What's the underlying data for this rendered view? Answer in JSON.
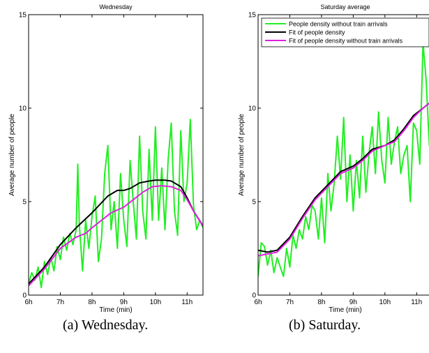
{
  "captions": [
    "(a) Wednesday.",
    "(b) Saturday."
  ],
  "colors": {
    "green": "#22ee22",
    "black": "#000000",
    "magenta": "#e020e0"
  },
  "chart_data": [
    {
      "type": "line",
      "title": "Wednesday",
      "xlabel": "Time (min)",
      "ylabel": "Average number of people",
      "xlim": [
        6,
        11.5
      ],
      "ylim": [
        0,
        15
      ],
      "xticks": [
        6,
        7,
        8,
        9,
        10,
        11
      ],
      "xtick_labels": [
        "6h",
        "7h",
        "8h",
        "9h",
        "10h",
        "11h"
      ],
      "yticks": [
        0,
        5,
        10,
        15
      ],
      "ytick_labels": [
        "0",
        "5",
        "10",
        "15"
      ],
      "legend": null,
      "series": [
        {
          "color": "green",
          "x": [
            6.0,
            6.1,
            6.2,
            6.3,
            6.4,
            6.5,
            6.6,
            6.7,
            6.8,
            6.9,
            7.0,
            7.1,
            7.2,
            7.3,
            7.4,
            7.5,
            7.55,
            7.6,
            7.7,
            7.8,
            7.9,
            8.0,
            8.1,
            8.2,
            8.3,
            8.4,
            8.5,
            8.6,
            8.7,
            8.8,
            8.9,
            9.0,
            9.1,
            9.2,
            9.3,
            9.4,
            9.5,
            9.6,
            9.7,
            9.8,
            9.9,
            10.0,
            10.1,
            10.2,
            10.3,
            10.4,
            10.5,
            10.6,
            10.7,
            10.8,
            10.9,
            11.0,
            11.1,
            11.2,
            11.3,
            11.4,
            11.5
          ],
          "y": [
            0.6,
            1.2,
            0.8,
            1.5,
            0.4,
            1.8,
            1.1,
            2.0,
            1.3,
            2.6,
            1.9,
            3.1,
            2.4,
            3.3,
            2.7,
            3.5,
            7.0,
            3.8,
            1.3,
            4.0,
            2.5,
            4.2,
            5.3,
            1.8,
            3.0,
            6.5,
            8.0,
            3.5,
            5.0,
            2.5,
            6.5,
            4.0,
            2.6,
            7.2,
            5.0,
            3.0,
            8.5,
            4.5,
            3.0,
            7.8,
            4.0,
            9.0,
            4.0,
            6.8,
            3.5,
            7.2,
            9.2,
            4.5,
            3.2,
            8.8,
            5.0,
            6.0,
            9.4,
            4.8,
            3.5,
            4.0,
            3.6
          ]
        },
        {
          "color": "black",
          "x": [
            6.0,
            6.5,
            7.0,
            7.5,
            8.0,
            8.5,
            8.8,
            9.0,
            9.2,
            9.5,
            9.8,
            10.0,
            10.3,
            10.5,
            10.8,
            11.0,
            11.2,
            11.5
          ],
          "y": [
            0.6,
            1.5,
            2.7,
            3.6,
            4.4,
            5.3,
            5.6,
            5.6,
            5.7,
            6.0,
            6.1,
            6.15,
            6.15,
            6.1,
            5.8,
            5.2,
            4.5,
            3.7
          ]
        },
        {
          "color": "magenta",
          "x": [
            6.0,
            6.5,
            7.0,
            7.5,
            7.8,
            8.0,
            8.3,
            8.6,
            9.0,
            9.3,
            9.6,
            9.9,
            10.2,
            10.5,
            10.8,
            11.0,
            11.2,
            11.5
          ],
          "y": [
            0.5,
            1.4,
            2.5,
            3.1,
            3.3,
            3.6,
            4.0,
            4.4,
            4.7,
            5.1,
            5.5,
            5.8,
            5.85,
            5.8,
            5.6,
            5.1,
            4.5,
            3.7
          ]
        }
      ]
    },
    {
      "type": "line",
      "title": "Saturday average",
      "xlabel": "Time (min)",
      "ylabel": "Average number of people",
      "xlim": [
        6,
        11.5
      ],
      "ylim": [
        0,
        15
      ],
      "xticks": [
        6,
        7,
        8,
        9,
        10,
        11
      ],
      "xtick_labels": [
        "6h",
        "7h",
        "8h",
        "9h",
        "10h",
        "11h"
      ],
      "yticks": [
        0,
        5,
        10,
        15
      ],
      "ytick_labels": [
        "0",
        "5",
        "10",
        "15"
      ],
      "legend": "top",
      "series": [
        {
          "name": "People density without train arrivals",
          "color": "green",
          "x": [
            6.0,
            6.1,
            6.2,
            6.3,
            6.4,
            6.5,
            6.6,
            6.7,
            6.8,
            6.9,
            7.0,
            7.1,
            7.2,
            7.3,
            7.4,
            7.5,
            7.6,
            7.7,
            7.8,
            7.9,
            8.0,
            8.1,
            8.2,
            8.3,
            8.4,
            8.5,
            8.6,
            8.7,
            8.8,
            8.9,
            9.0,
            9.1,
            9.2,
            9.3,
            9.4,
            9.5,
            9.6,
            9.7,
            9.8,
            9.9,
            10.0,
            10.1,
            10.2,
            10.3,
            10.4,
            10.5,
            10.6,
            10.7,
            10.8,
            10.9,
            11.0,
            11.1,
            11.2,
            11.3,
            11.4,
            11.5
          ],
          "y": [
            1.0,
            2.8,
            2.6,
            1.6,
            2.4,
            1.2,
            2.0,
            1.5,
            1.0,
            2.5,
            1.5,
            3.2,
            2.5,
            3.5,
            3.0,
            4.2,
            3.5,
            4.8,
            4.5,
            3.0,
            5.2,
            2.8,
            6.5,
            4.5,
            6.0,
            8.5,
            6.2,
            9.5,
            5.0,
            7.5,
            4.5,
            7.2,
            5.2,
            8.5,
            5.5,
            7.6,
            9.0,
            6.5,
            9.8,
            7.2,
            6.0,
            9.5,
            7.0,
            8.2,
            9.0,
            6.5,
            7.5,
            8.0,
            5.0,
            9.2,
            8.8,
            7.0,
            13.5,
            11.5,
            8.0,
            10.0
          ]
        },
        {
          "name": "Fit of people density",
          "color": "black",
          "x": [
            6.0,
            6.3,
            6.6,
            7.0,
            7.4,
            7.8,
            8.2,
            8.6,
            9.0,
            9.3,
            9.6,
            10.0,
            10.3,
            10.6,
            10.9,
            11.2,
            11.5
          ],
          "y": [
            2.4,
            2.3,
            2.4,
            3.1,
            4.2,
            5.2,
            5.9,
            6.6,
            6.9,
            7.3,
            7.8,
            8.0,
            8.3,
            8.9,
            9.6,
            10.0,
            10.4
          ]
        },
        {
          "name": "Fit of people density without train arrivals",
          "color": "magenta",
          "x": [
            6.0,
            6.3,
            6.6,
            7.0,
            7.4,
            7.8,
            8.2,
            8.6,
            9.0,
            9.3,
            9.6,
            10.0,
            10.3,
            10.6,
            10.9,
            11.2,
            11.5
          ],
          "y": [
            2.1,
            2.2,
            2.3,
            3.0,
            4.1,
            5.1,
            5.8,
            6.5,
            6.8,
            7.2,
            7.7,
            8.0,
            8.2,
            8.8,
            9.5,
            10.0,
            10.4
          ]
        }
      ]
    }
  ]
}
